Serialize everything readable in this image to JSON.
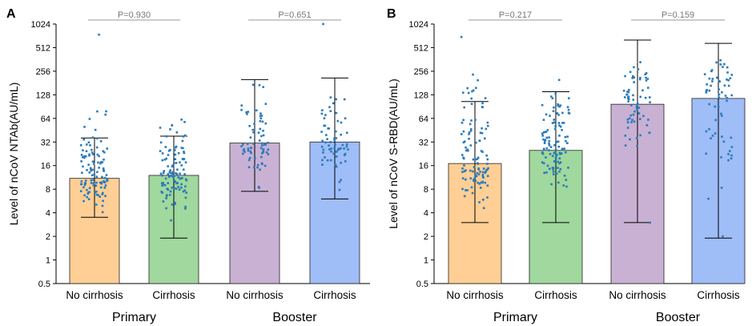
{
  "figure": {
    "colors": {
      "bar_fills": [
        "#ffcf95",
        "#a0d89d",
        "#c9b1d4",
        "#9fbdf7"
      ],
      "dot": "#2b7bba",
      "pval_line": "#9a9a9a"
    }
  },
  "chart_data": [
    {
      "type": "bar",
      "panel_label": "A",
      "title": "",
      "ylabel": "Level of nCoV NTAb(AU/mL)",
      "yscale": "log2",
      "ylim": [
        0.5,
        1024
      ],
      "yticks": [
        0.5,
        1,
        2,
        4,
        8,
        16,
        32,
        64,
        128,
        256,
        512,
        1024
      ],
      "ytick_labels": [
        "0.5",
        "1",
        "2",
        "4",
        "8",
        "16",
        "32",
        "64",
        "128",
        "256",
        "512",
        "1024"
      ],
      "categories": [
        "No cirrhosis",
        "Cirrhosis",
        "No cirrhosis",
        "Cirrhosis"
      ],
      "groups": [
        {
          "label": "Primary",
          "categories": [
            0,
            1
          ],
          "p_value": "P=0.930"
        },
        {
          "label": "Booster",
          "categories": [
            2,
            3
          ],
          "p_value": "P=0.651"
        }
      ],
      "values": [
        11,
        12,
        31,
        32
      ],
      "error_low": [
        3.5,
        1.9,
        7.5,
        6
      ],
      "error_high": [
        36,
        38,
        200,
        210
      ],
      "points": [
        {
          "n": 110,
          "min": 3.5,
          "max": 150,
          "extra": [
            750
          ]
        },
        {
          "n": 110,
          "min": 3.2,
          "max": 100,
          "extra": []
        },
        {
          "n": 70,
          "min": 8,
          "max": 380,
          "extra": []
        },
        {
          "n": 65,
          "min": 6,
          "max": 380,
          "extra": [
            1024
          ]
        }
      ]
    },
    {
      "type": "bar",
      "panel_label": "B",
      "title": "",
      "ylabel": "Level of nCoV S-RBD(AU/mL)",
      "yscale": "log2",
      "ylim": [
        0.5,
        1024
      ],
      "yticks": [
        0.5,
        1,
        2,
        4,
        8,
        16,
        32,
        64,
        128,
        256,
        512,
        1024
      ],
      "ytick_labels": [
        "0.5",
        "1",
        "2",
        "4",
        "8",
        "16",
        "32",
        "64",
        "128",
        "256",
        "512",
        "1024"
      ],
      "categories": [
        "No cirrhosis",
        "Cirrhosis",
        "No cirrhosis",
        "Cirrhosis"
      ],
      "groups": [
        {
          "label": "Primary",
          "categories": [
            0,
            1
          ],
          "p_value": "P=0.217"
        },
        {
          "label": "Booster",
          "categories": [
            2,
            3
          ],
          "p_value": "P=0.159"
        }
      ],
      "values": [
        17,
        25,
        97,
        115
      ],
      "error_low": [
        3,
        3,
        3,
        1.9
      ],
      "error_high": [
        105,
        140,
        640,
        580
      ],
      "points": [
        {
          "n": 110,
          "min": 3,
          "max": 600,
          "extra": [
            700
          ]
        },
        {
          "n": 110,
          "min": 3,
          "max": 320,
          "extra": []
        },
        {
          "n": 65,
          "min": 13,
          "max": 1024,
          "extra": [
            3
          ]
        },
        {
          "n": 60,
          "min": 2.5,
          "max": 1024,
          "extra": [
            2
          ]
        }
      ]
    }
  ]
}
